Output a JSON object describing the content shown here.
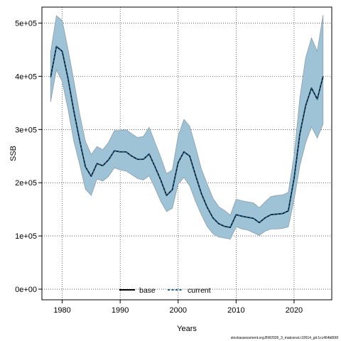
{
  "chart_data": {
    "type": "line",
    "title": "",
    "xlabel": "Years",
    "ylabel": "SSB",
    "xlim": [
      1976.5,
      2026.5
    ],
    "ylim": [
      -20000,
      530000
    ],
    "xticks": [
      1980,
      1990,
      2000,
      2010,
      2020
    ],
    "yticks": [
      0,
      100000,
      200000,
      300000,
      400000,
      500000
    ],
    "ytick_labels": [
      "0e+00",
      "1e+05",
      "2e+05",
      "3e+05",
      "4e+05",
      "5e+05"
    ],
    "grid": true,
    "legend_position": "bottom",
    "band_color": "#9fc3d6",
    "band_edge_color": "#8a9fab",
    "x": [
      1978,
      1979,
      1980,
      1981,
      1982,
      1983,
      1984,
      1985,
      1986,
      1987,
      1988,
      1989,
      1990,
      1991,
      1992,
      1993,
      1994,
      1995,
      1996,
      1997,
      1998,
      1999,
      2000,
      2001,
      2002,
      2003,
      2004,
      2005,
      2006,
      2007,
      2008,
      2009,
      2010,
      2011,
      2012,
      2013,
      2014,
      2015,
      2016,
      2017,
      2018,
      2019,
      2020,
      2021,
      2022,
      2023,
      2024,
      2025
    ],
    "series": [
      {
        "name": "base",
        "color": "#000000",
        "style": "solid",
        "values": [
          398000,
          456000,
          447000,
          396000,
          335000,
          280000,
          230000,
          212000,
          236000,
          232000,
          243000,
          260000,
          258000,
          258000,
          250000,
          244000,
          244000,
          254000,
          230000,
          205000,
          176000,
          187000,
          238000,
          258000,
          250000,
          214000,
          180000,
          154000,
          134000,
          123000,
          118000,
          116000,
          140000,
          137000,
          135000,
          133000,
          125000,
          134000,
          140000,
          141000,
          142000,
          147000,
          208000,
          292000,
          345000,
          378000,
          357000,
          400000
        ]
      },
      {
        "name": "current",
        "color": "#1a5f8a",
        "style": "dashed",
        "values": [
          398000,
          456000,
          447000,
          396000,
          335000,
          280000,
          230000,
          212000,
          236000,
          232000,
          243000,
          260000,
          258000,
          258000,
          250000,
          244000,
          244000,
          254000,
          230000,
          205000,
          176000,
          187000,
          238000,
          258000,
          250000,
          214000,
          180000,
          154000,
          134000,
          123000,
          118000,
          116000,
          140000,
          137000,
          135000,
          133000,
          125000,
          134000,
          140000,
          141000,
          142000,
          147000,
          208000,
          292000,
          345000,
          378000,
          357000,
          400000
        ]
      }
    ],
    "band": {
      "lower": [
        352000,
        412000,
        390000,
        338000,
        278000,
        235000,
        188000,
        176000,
        207000,
        203000,
        212000,
        228000,
        224000,
        222000,
        215000,
        208000,
        205000,
        213000,
        190000,
        165000,
        146000,
        152000,
        197000,
        210000,
        194000,
        165000,
        140000,
        118000,
        104000,
        98000,
        96000,
        94000,
        117000,
        113000,
        111000,
        106000,
        101000,
        109000,
        113000,
        113000,
        114000,
        117000,
        168000,
        232000,
        275000,
        305000,
        284000,
        310000
      ],
      "upper": [
        445000,
        514000,
        505000,
        451000,
        392000,
        330000,
        278000,
        253000,
        268000,
        262000,
        276000,
        298000,
        298000,
        300000,
        292000,
        285000,
        287000,
        304000,
        276000,
        248000,
        217000,
        224000,
        288000,
        319000,
        306000,
        268000,
        226000,
        198000,
        171000,
        155000,
        148000,
        139000,
        169000,
        166000,
        164000,
        162000,
        153000,
        164000,
        174000,
        176000,
        177000,
        182000,
        251000,
        360000,
        435000,
        472000,
        447000,
        515000
      ]
    }
  },
  "footer_text": "stockassessment.org.BW2026_3_matconst.r19514_git:1cc464b806f"
}
